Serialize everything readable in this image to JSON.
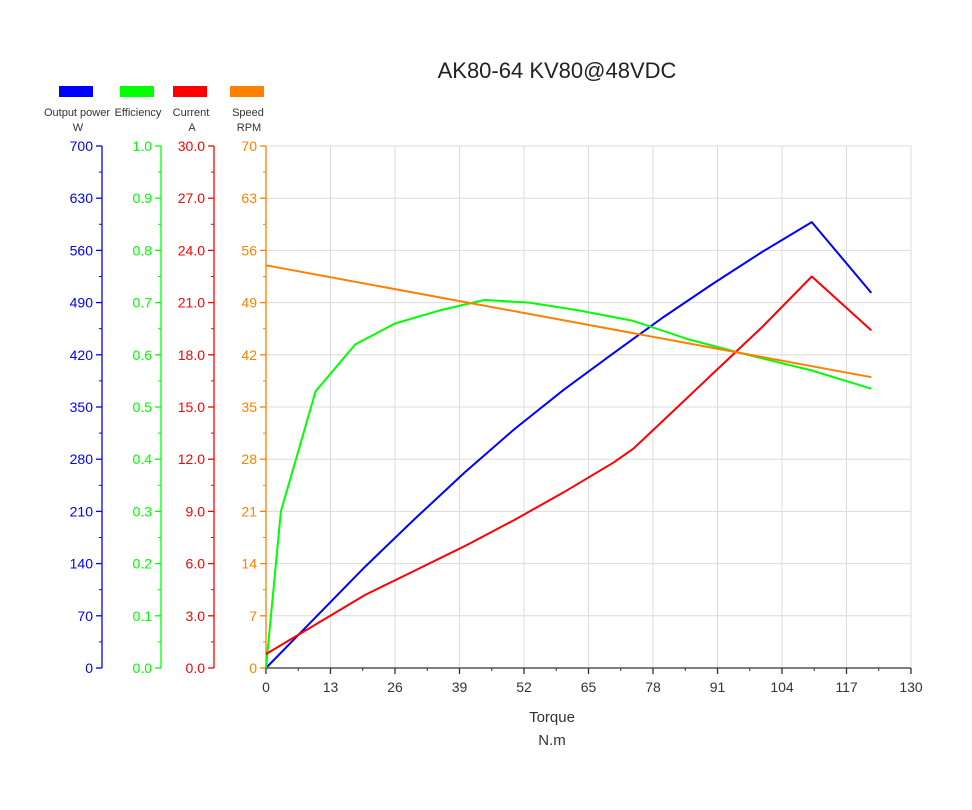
{
  "chart_data": {
    "type": "line",
    "title": "AK80-64 KV80@48VDC",
    "xlabel": "Torque",
    "xunit": "N.m",
    "xlim": [
      0,
      130
    ],
    "xticks": [
      "0",
      "13",
      "26",
      "39",
      "52",
      "65",
      "78",
      "91",
      "104",
      "117",
      "130"
    ],
    "grid": true,
    "legend_position": "top-left",
    "axes": [
      {
        "name": "Output power",
        "unit": "W",
        "color": "#0000ff",
        "ylim": [
          0,
          700
        ],
        "ticks": [
          "0",
          "70",
          "140",
          "210",
          "280",
          "350",
          "420",
          "490",
          "560",
          "630",
          "700"
        ]
      },
      {
        "name": "Efficiency",
        "unit": "",
        "color": "#00ff00",
        "ylim": [
          0,
          1.0
        ],
        "ticks": [
          "0.0",
          "0.1",
          "0.2",
          "0.3",
          "0.4",
          "0.5",
          "0.6",
          "0.7",
          "0.8",
          "0.9",
          "1.0"
        ]
      },
      {
        "name": "Current",
        "unit": "A",
        "color": "#ff0000",
        "ylim": [
          0,
          30.0
        ],
        "ticks": [
          "0.0",
          "3.0",
          "6.0",
          "9.0",
          "12.0",
          "15.0",
          "18.0",
          "21.0",
          "24.0",
          "27.0",
          "30.0"
        ]
      },
      {
        "name": "Speed",
        "unit": "RPM",
        "color": "#ff8000",
        "ylim": [
          0,
          70
        ],
        "ticks": [
          "0",
          "7",
          "14",
          "21",
          "28",
          "35",
          "42",
          "49",
          "56",
          "63",
          "70"
        ]
      }
    ],
    "series": [
      {
        "name": "Output power",
        "axis": 0,
        "color": "#0000ff",
        "x": [
          0,
          10,
          20,
          30,
          40,
          50,
          60,
          70,
          80,
          90,
          100,
          110,
          122
        ],
        "y": [
          0,
          68,
          136,
          200,
          262,
          320,
          373,
          422,
          470,
          515,
          558,
          598,
          503
        ]
      },
      {
        "name": "Efficiency",
        "axis": 1,
        "color": "#00ff00",
        "x": [
          0,
          3,
          10,
          18,
          26,
          35,
          44,
          53,
          63,
          74,
          85,
          97,
          110,
          122
        ],
        "y": [
          0,
          0.3,
          0.53,
          0.62,
          0.66,
          0.685,
          0.705,
          0.7,
          0.685,
          0.665,
          0.63,
          0.6,
          0.57,
          0.535
        ]
      },
      {
        "name": "Current",
        "axis": 2,
        "color": "#ff0000",
        "x": [
          0,
          10,
          20,
          30,
          40,
          50,
          60,
          70,
          74,
          80,
          90,
          100,
          110,
          122
        ],
        "y": [
          0.8,
          2.5,
          4.2,
          5.6,
          7.0,
          8.5,
          10.1,
          11.8,
          12.6,
          14.2,
          16.9,
          19.6,
          22.5,
          19.4
        ]
      },
      {
        "name": "Speed",
        "axis": 3,
        "color": "#ff8000",
        "x": [
          0,
          122
        ],
        "y": [
          54,
          39
        ]
      }
    ]
  }
}
